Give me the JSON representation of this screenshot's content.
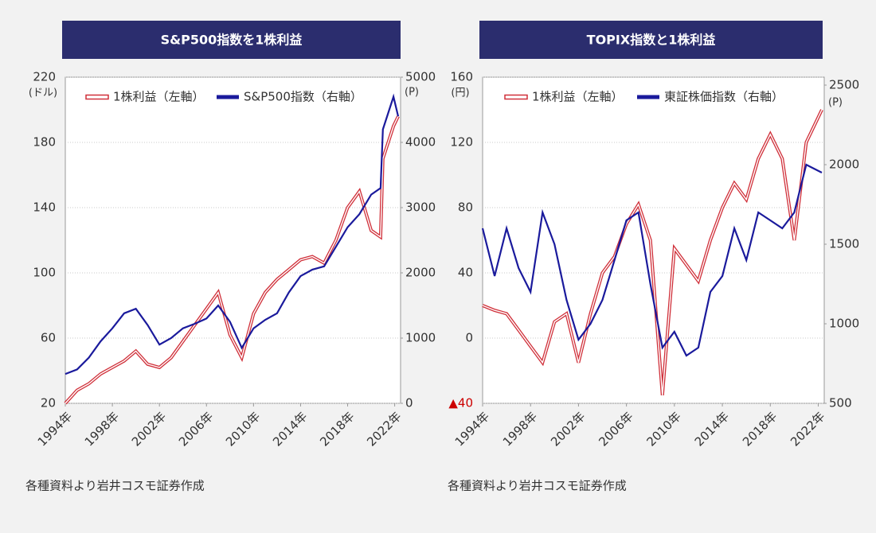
{
  "chart_data": [
    {
      "type": "line",
      "title": "S&P500指数を1株利益",
      "note": "各種資料より岩井コスモ証券作成",
      "y_unit": "(ドル)",
      "y2_unit": "(P)",
      "xlim": [
        1994,
        2022.5
      ],
      "ylim": [
        20,
        220
      ],
      "y2lim": [
        0,
        5000
      ],
      "xticks": [
        {
          "value": 1994,
          "label": "1994年"
        },
        {
          "value": 1998,
          "label": "1998年"
        },
        {
          "value": 2002,
          "label": "2002年"
        },
        {
          "value": 2006,
          "label": "2006年"
        },
        {
          "value": 2010,
          "label": "2010年"
        },
        {
          "value": 2014,
          "label": "2014年"
        },
        {
          "value": 2018,
          "label": "2018年"
        },
        {
          "value": 2022,
          "label": "2022年"
        }
      ],
      "yticks": [
        20,
        60,
        100,
        140,
        180,
        220
      ],
      "y2ticks": [
        0,
        1000,
        2000,
        3000,
        4000,
        5000
      ],
      "grid": true,
      "x": [
        1994,
        1995,
        1996,
        1997,
        1998,
        1999,
        2000,
        2001,
        2002,
        2003,
        2004,
        2005,
        2006,
        2007,
        2008,
        2009,
        2010,
        2011,
        2012,
        2013,
        2014,
        2015,
        2016,
        2017,
        2018,
        2019,
        2020,
        2020.8,
        2021,
        2021.9,
        2022.3
      ],
      "series": [
        {
          "name": "1株利益（左軸）",
          "color": "#d0303a",
          "axis": "y",
          "values": [
            20,
            28,
            32,
            38,
            42,
            46,
            52,
            44,
            42,
            48,
            58,
            68,
            78,
            88,
            62,
            48,
            75,
            88,
            96,
            102,
            108,
            110,
            106,
            120,
            140,
            150,
            126,
            122,
            170,
            190,
            196
          ]
        },
        {
          "name": "S&P500指数（右軸）",
          "color": "#1a1a9c",
          "axis": "y2",
          "values": [
            450,
            520,
            700,
            950,
            1150,
            1380,
            1450,
            1200,
            900,
            1000,
            1150,
            1220,
            1300,
            1500,
            1250,
            850,
            1150,
            1280,
            1380,
            1700,
            1950,
            2050,
            2100,
            2400,
            2700,
            2900,
            3200,
            3300,
            4200,
            4700,
            4400
          ]
        }
      ]
    },
    {
      "type": "line",
      "title": "TOPIX指数と1株利益",
      "note": "各種資料より岩井コスモ証券作成",
      "y_unit": "(円)",
      "y2_unit": "(P)",
      "xlim": [
        1994,
        2022.5
      ],
      "ylim": [
        -40,
        160
      ],
      "y2lim": [
        500,
        2550
      ],
      "xticks": [
        {
          "value": 1994,
          "label": "1994年"
        },
        {
          "value": 1998,
          "label": "1998年"
        },
        {
          "value": 2002,
          "label": "2002年"
        },
        {
          "value": 2006,
          "label": "2006年"
        },
        {
          "value": 2010,
          "label": "2010年"
        },
        {
          "value": 2014,
          "label": "2014年"
        },
        {
          "value": 2018,
          "label": "2018年"
        },
        {
          "value": 2022,
          "label": "2022年"
        }
      ],
      "yticks": [
        {
          "value": -40,
          "label": "▲40"
        },
        0,
        40,
        80,
        120,
        160
      ],
      "y2ticks": [
        500,
        1000,
        1500,
        2000,
        2500
      ],
      "grid": true,
      "x": [
        1994,
        1995,
        1996,
        1997,
        1998,
        1999,
        2000,
        2001,
        2002,
        2003,
        2004,
        2005,
        2006,
        2007,
        2008,
        2009,
        2010,
        2011,
        2012,
        2013,
        2014,
        2015,
        2016,
        2017,
        2018,
        2019,
        2020,
        2021,
        2022.3
      ],
      "series": [
        {
          "name": "1株利益（左軸）",
          "color": "#d0303a",
          "axis": "y",
          "values": [
            20,
            17,
            15,
            5,
            -5,
            -15,
            10,
            15,
            -15,
            15,
            40,
            50,
            70,
            82,
            60,
            -35,
            55,
            45,
            35,
            60,
            80,
            95,
            85,
            110,
            125,
            110,
            60,
            120,
            140
          ]
        },
        {
          "name": "東証株価指数（右軸）",
          "color": "#1a1a9c",
          "axis": "y2",
          "values": [
            1600,
            1300,
            1600,
            1350,
            1200,
            1700,
            1500,
            1150,
            900,
            1000,
            1150,
            1400,
            1650,
            1700,
            1250,
            850,
            950,
            800,
            850,
            1200,
            1300,
            1600,
            1400,
            1700,
            1650,
            1600,
            1700,
            2000,
            1950
          ]
        }
      ]
    }
  ]
}
